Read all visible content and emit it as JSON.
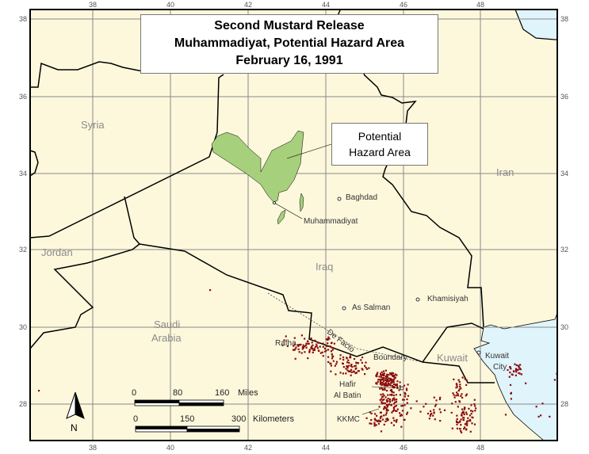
{
  "title": {
    "line1": "Second Mustard Release",
    "line2": "Muhammadiyat, Potential Hazard Area",
    "line3": "February 16, 1991"
  },
  "callout": {
    "line1": "Potential",
    "line2": "Hazard Area"
  },
  "grid": {
    "longitudes": [
      "38",
      "40",
      "42",
      "44",
      "46",
      "48"
    ],
    "latitudes": [
      "38",
      "36",
      "34",
      "32",
      "30",
      "28"
    ]
  },
  "countries": {
    "syria": "Syria",
    "jordan": "Jordan",
    "iraq": "Iraq",
    "iran": "Iran",
    "saudi1": "Saudi",
    "saudi2": "Arabia",
    "kuwait": "Kuwait"
  },
  "cities": {
    "baghdad": "Baghdad",
    "muhammadiyat": "Muhammadiyat",
    "as_salman": "As Salman",
    "khamisiyah": "Khamisiyah",
    "kuwait_city1": "Kuwait",
    "kuwait_city2": "City",
    "rafha": "Rafha",
    "hafir1": "Hafir",
    "hafir2": "Al Batin",
    "kkmc": "KKMC"
  },
  "boundary_label": {
    "de_facto": "De Facto",
    "boundary": "Boundary"
  },
  "scale": {
    "miles": [
      "0",
      "80",
      "160"
    ],
    "miles_unit": "Miles",
    "km": [
      "0",
      "150",
      "300"
    ],
    "km_unit": "Kilometers"
  },
  "north_label": "N",
  "colors": {
    "land": "#fdf8dc",
    "water": "#dff4fb",
    "hazard": "#a6d07c",
    "troops": "#8b0d0d",
    "grid": "#888888"
  }
}
